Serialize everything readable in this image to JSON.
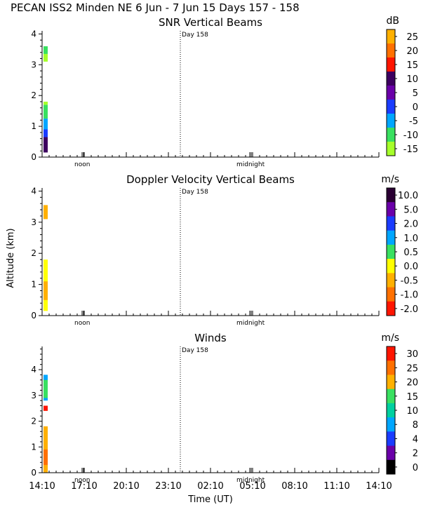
{
  "figure": {
    "title": "PECAN ISS2 Minden NE    6 Jun -  7 Jun 15 Days 157 - 158",
    "day_marker_label": "Day 158",
    "noon_label": "noon",
    "midnight_label": "midnight",
    "ylabel": "Altitude (km)",
    "xlabel": "Time (UT)",
    "x_ticks": [
      "14:10",
      "17:10",
      "20:10",
      "23:10",
      "02:10",
      "05:10",
      "08:10",
      "11:10",
      "14:10"
    ]
  },
  "chart_data": [
    {
      "type": "heatmap",
      "title": "SNR Vertical Beams",
      "ylim": [
        0,
        4.1
      ],
      "y_ticks": [
        "0",
        "1",
        "2",
        "3",
        "4"
      ],
      "colorbar": {
        "unit": "dB",
        "labels": [
          "25",
          "20",
          "15",
          "10",
          "5",
          "0",
          "-5",
          "-10",
          "-15"
        ],
        "colors": [
          "#ffb000",
          "#ff7000",
          "#ff1500",
          "#3d0060",
          "#6a00a8",
          "#1a3cff",
          "#00a6ff",
          "#39e060",
          "#a6ff2a"
        ]
      },
      "data": [
        {
          "alt_range": [
            0.15,
            0.65
          ],
          "color": "#3d0060"
        },
        {
          "alt_range": [
            0.65,
            0.9
          ],
          "color": "#1a3cff"
        },
        {
          "alt_range": [
            0.9,
            1.25
          ],
          "color": "#00a6ff"
        },
        {
          "alt_range": [
            1.25,
            1.7
          ],
          "color": "#39e060"
        },
        {
          "alt_range": [
            1.7,
            1.8
          ],
          "color": "#a6ff2a"
        },
        {
          "alt_range": [
            3.1,
            3.35
          ],
          "color": "#a6ff2a"
        },
        {
          "alt_range": [
            3.35,
            3.6
          ],
          "color": "#39e060"
        }
      ]
    },
    {
      "type": "heatmap",
      "title": "Doppler Velocity Vertical Beams",
      "ylim": [
        0,
        4.1
      ],
      "y_ticks": [
        "0",
        "1",
        "2",
        "3",
        "4"
      ],
      "colorbar": {
        "unit": "m/s",
        "labels": [
          "10.0",
          "5.0",
          "2.0",
          "1.0",
          "0.5",
          "0.0",
          "-0.5",
          "-1.0",
          "-2.0"
        ],
        "colors": [
          "#2a0033",
          "#6a00a8",
          "#1a3cff",
          "#00a6ff",
          "#39e060",
          "#ffff00",
          "#ffb000",
          "#ff7000",
          "#ff1500"
        ]
      },
      "data": [
        {
          "alt_range": [
            0.15,
            1.8
          ],
          "color": "#ffff00"
        },
        {
          "alt_range": [
            0.5,
            1.1
          ],
          "color": "#ffb000"
        },
        {
          "alt_range": [
            3.1,
            3.55
          ],
          "color": "#ffb000"
        }
      ]
    },
    {
      "type": "heatmap",
      "title": "Winds",
      "ylim": [
        0,
        4.9
      ],
      "y_ticks": [
        "0",
        "1",
        "2",
        "3",
        "4"
      ],
      "colorbar": {
        "unit": "m/s",
        "labels": [
          "30",
          "25",
          "20",
          "15",
          "10",
          "8",
          "4",
          "2",
          "0"
        ],
        "colors": [
          "#ff1500",
          "#ff7000",
          "#ffb000",
          "#39e060",
          "#00d0a0",
          "#00a6ff",
          "#1a3cff",
          "#6a00a8",
          "#000000"
        ]
      },
      "data": [
        {
          "alt_range": [
            0.0,
            1.8
          ],
          "color": "#ffb000"
        },
        {
          "alt_range": [
            0.3,
            0.9
          ],
          "color": "#ff7000"
        },
        {
          "alt_range": [
            2.4,
            2.6
          ],
          "color": "#ff1500"
        },
        {
          "alt_range": [
            2.8,
            3.8
          ],
          "color": "#00a6ff"
        },
        {
          "alt_range": [
            2.9,
            3.6
          ],
          "color": "#39e060"
        }
      ]
    }
  ]
}
